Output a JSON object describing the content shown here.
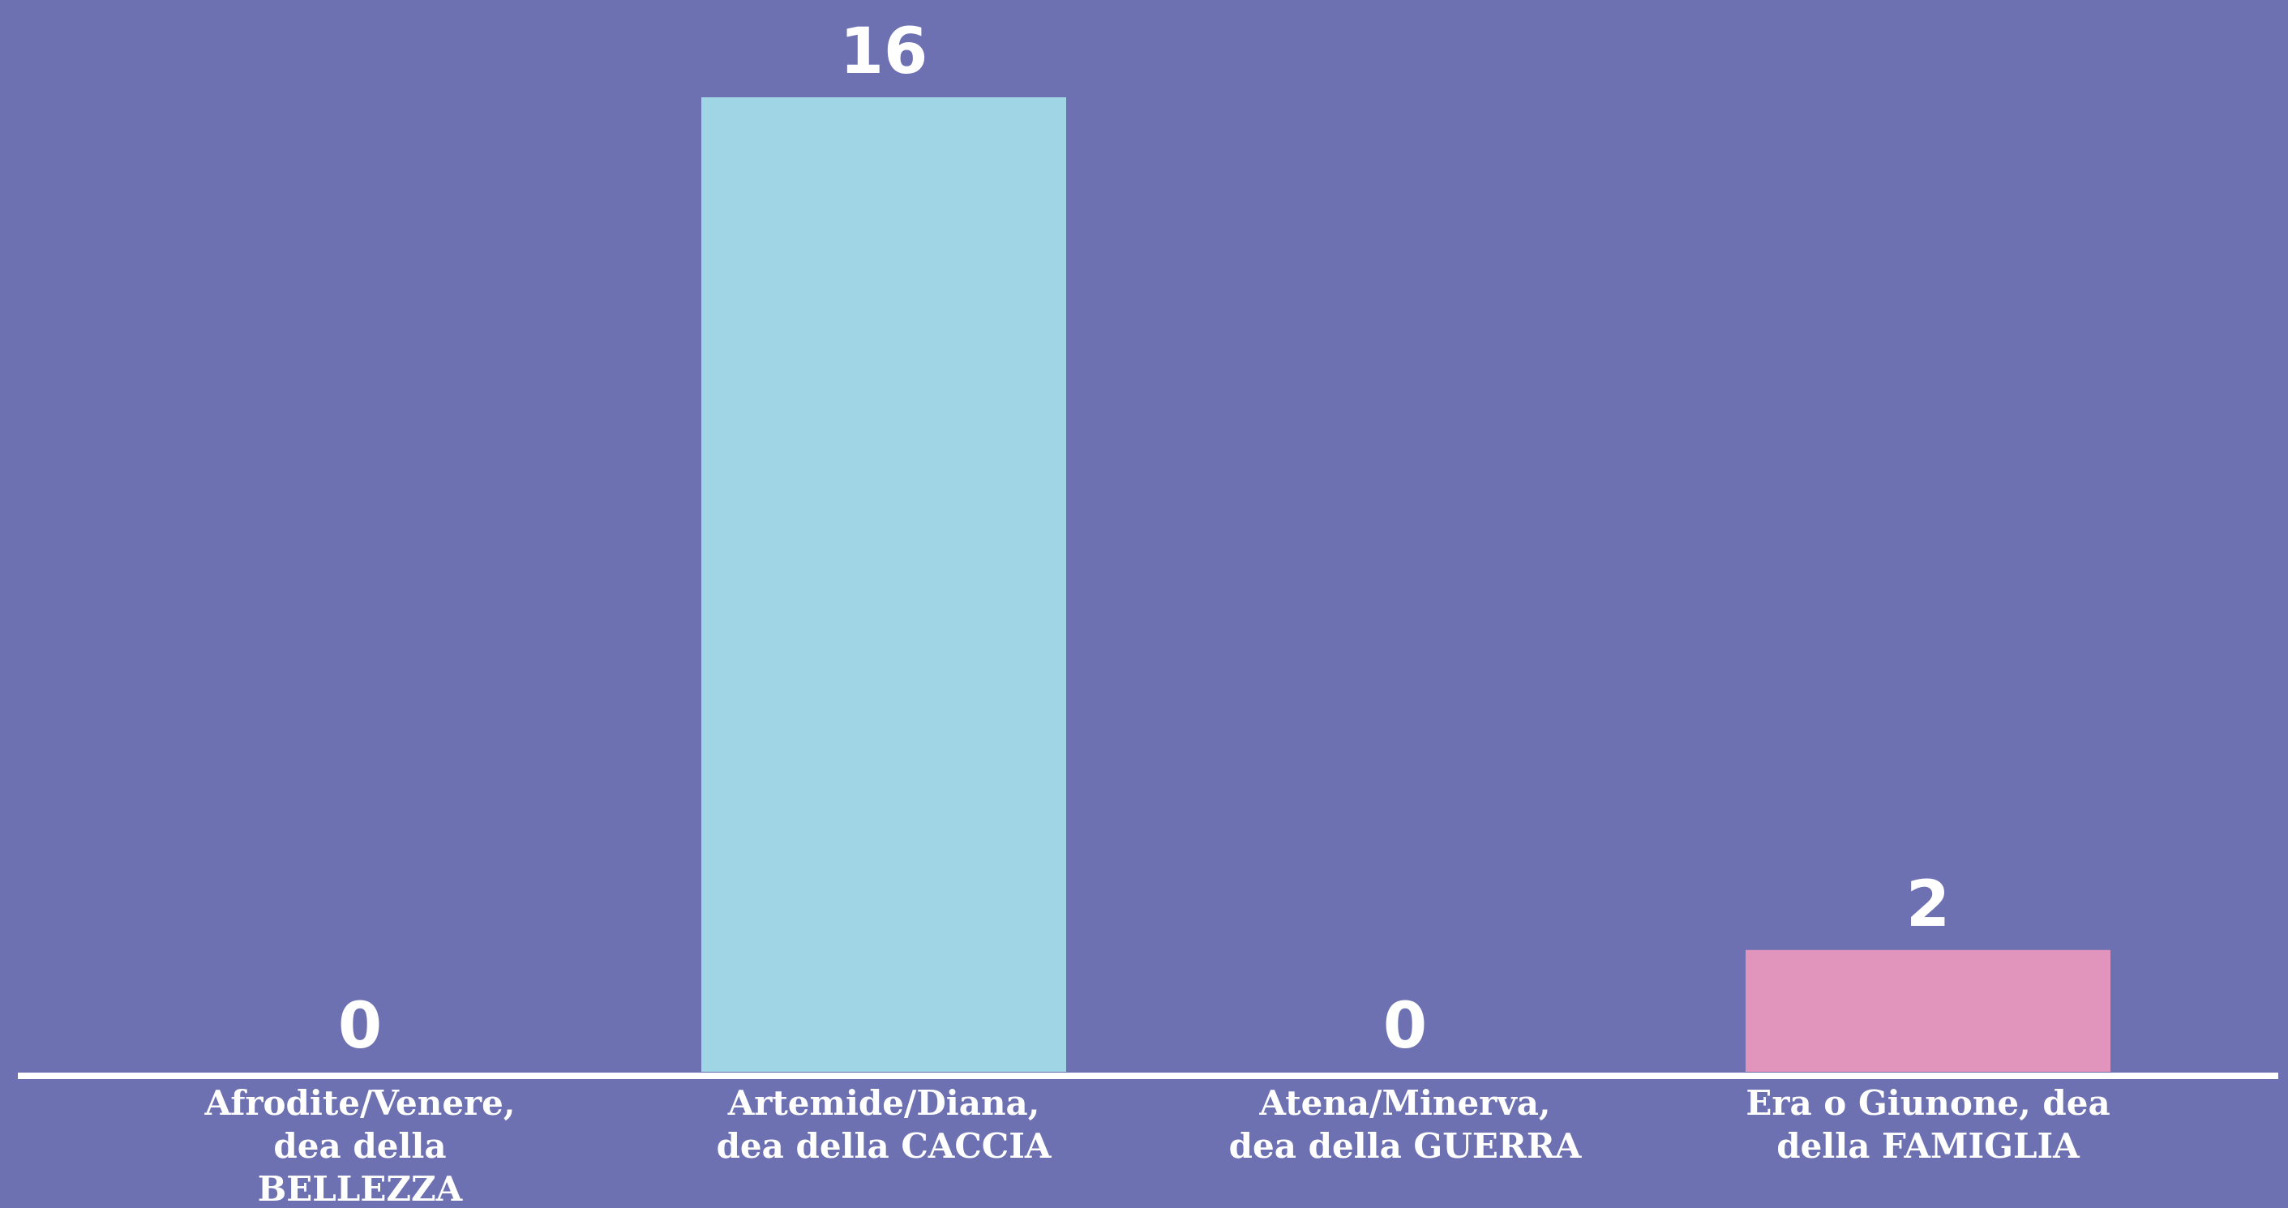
{
  "chart_data": {
    "type": "bar",
    "categories": [
      [
        "Afrodite/Venere,",
        "dea della",
        "BELLEZZA"
      ],
      [
        "Artemide/Diana,",
        "dea della CACCIA"
      ],
      [
        "Atena/Minerva,",
        "dea della GUERRA"
      ],
      [
        "Era o Giunone, dea",
        "della FAMIGLIA"
      ]
    ],
    "values": [
      0,
      16,
      0,
      2
    ],
    "value_labels": [
      "0",
      "16",
      "0",
      "2"
    ],
    "bar_colors": [
      "#a0d5e6",
      "#a0d5e6",
      "#a0d5e6",
      "#e195bc"
    ],
    "ylim": [
      0,
      16
    ],
    "background_color": "#6d71b2",
    "axis_color": "#ffffff",
    "grid": false,
    "legend": "none"
  }
}
